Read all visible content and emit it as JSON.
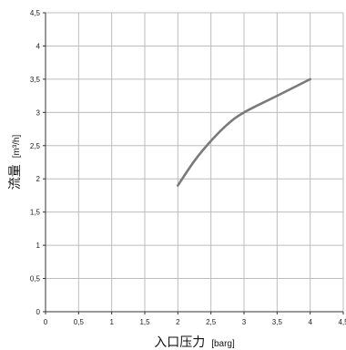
{
  "chart_data": {
    "type": "line",
    "title": "",
    "xlabel": "入口压力",
    "xlabel_unit": "[barg]",
    "ylabel": "流量",
    "ylabel_unit": "[m³/h]",
    "xlim": [
      0,
      4.5
    ],
    "ylim": [
      0,
      4.5
    ],
    "x_ticks": [
      "0",
      "0,5",
      "1",
      "1,5",
      "2",
      "2,5",
      "3",
      "3,5",
      "4",
      "4,5"
    ],
    "y_ticks": [
      "0",
      "0,5",
      "1",
      "1,5",
      "2",
      "2,5",
      "3",
      "3,5",
      "4",
      "4,5"
    ],
    "grid": true,
    "series": [
      {
        "color": "#7a7a7a",
        "x": [
          2.0,
          2.25,
          2.5,
          2.75,
          3.0,
          3.5,
          4.0
        ],
        "y": [
          1.9,
          2.27,
          2.57,
          2.82,
          3.0,
          3.25,
          3.5
        ]
      }
    ]
  }
}
